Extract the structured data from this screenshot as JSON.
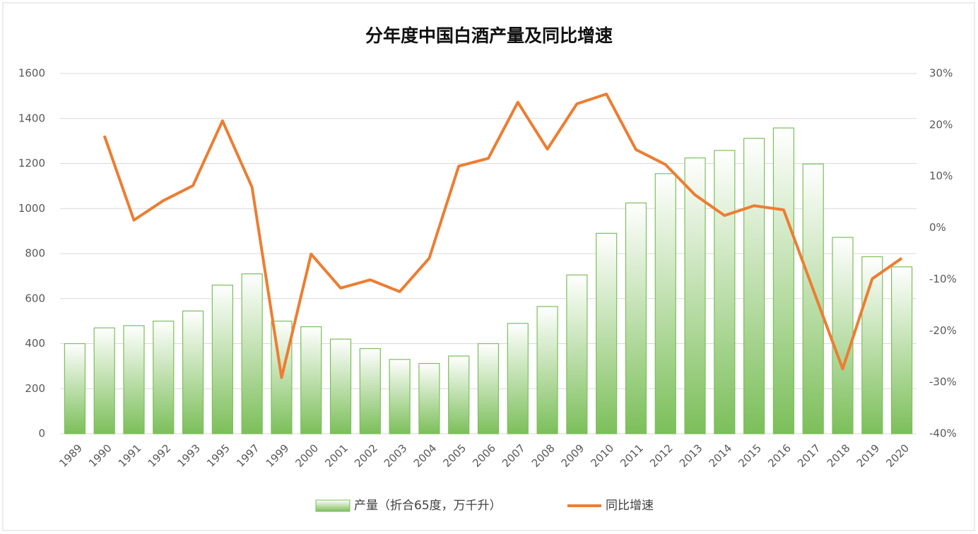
{
  "chart_data": {
    "type": "bar-line",
    "title": "分年度中国白酒产量及同比增速",
    "categories": [
      "1989",
      "1990",
      "1991",
      "1992",
      "1993",
      "1995",
      "1997",
      "1999",
      "2000",
      "2001",
      "2002",
      "2003",
      "2004",
      "2005",
      "2006",
      "2007",
      "2008",
      "2009",
      "2010",
      "2011",
      "2012",
      "2013",
      "2014",
      "2015",
      "2016",
      "2017",
      "2018",
      "2019",
      "2020"
    ],
    "series": [
      {
        "name": "产量（折合65度，万千升）",
        "type": "bar",
        "color": "#7cbf5a",
        "values": [
          400,
          470,
          480,
          500,
          545,
          660,
          710,
          500,
          475,
          420,
          378,
          330,
          312,
          345,
          400,
          490,
          565,
          705,
          890,
          1025,
          1155,
          1225,
          1258,
          1312,
          1358,
          1198,
          872,
          786,
          741
        ]
      },
      {
        "name": "同比增速",
        "type": "line",
        "axis": "y2",
        "color": "#ed7d31",
        "values": [
          null,
          17.9,
          1.5,
          5.3,
          8.2,
          20.8,
          7.9,
          -29.1,
          -5.1,
          -11.7,
          -10.1,
          -12.4,
          -5.9,
          12.0,
          13.5,
          24.4,
          15.3,
          24.1,
          26.0,
          15.2,
          12.3,
          6.4,
          2.4,
          4.3,
          3.5,
          -12.0,
          -27.4,
          -9.9,
          -5.9
        ]
      }
    ],
    "ylim": [
      0,
      1600
    ],
    "yticks": [
      0,
      200,
      400,
      600,
      800,
      1000,
      1200,
      1400,
      1600
    ],
    "y2lim": [
      -40,
      30
    ],
    "y2ticks": [
      {
        "value": -40,
        "label": "-40%"
      },
      {
        "value": -30,
        "label": "-30%"
      },
      {
        "value": -20,
        "label": "-20%"
      },
      {
        "value": -10,
        "label": "-10%"
      },
      {
        "value": 0,
        "label": "0%"
      },
      {
        "value": 10,
        "label": "10%"
      },
      {
        "value": 20,
        "label": "20%"
      },
      {
        "value": 30,
        "label": "30%"
      }
    ],
    "grid": true,
    "legend": "bottom"
  }
}
